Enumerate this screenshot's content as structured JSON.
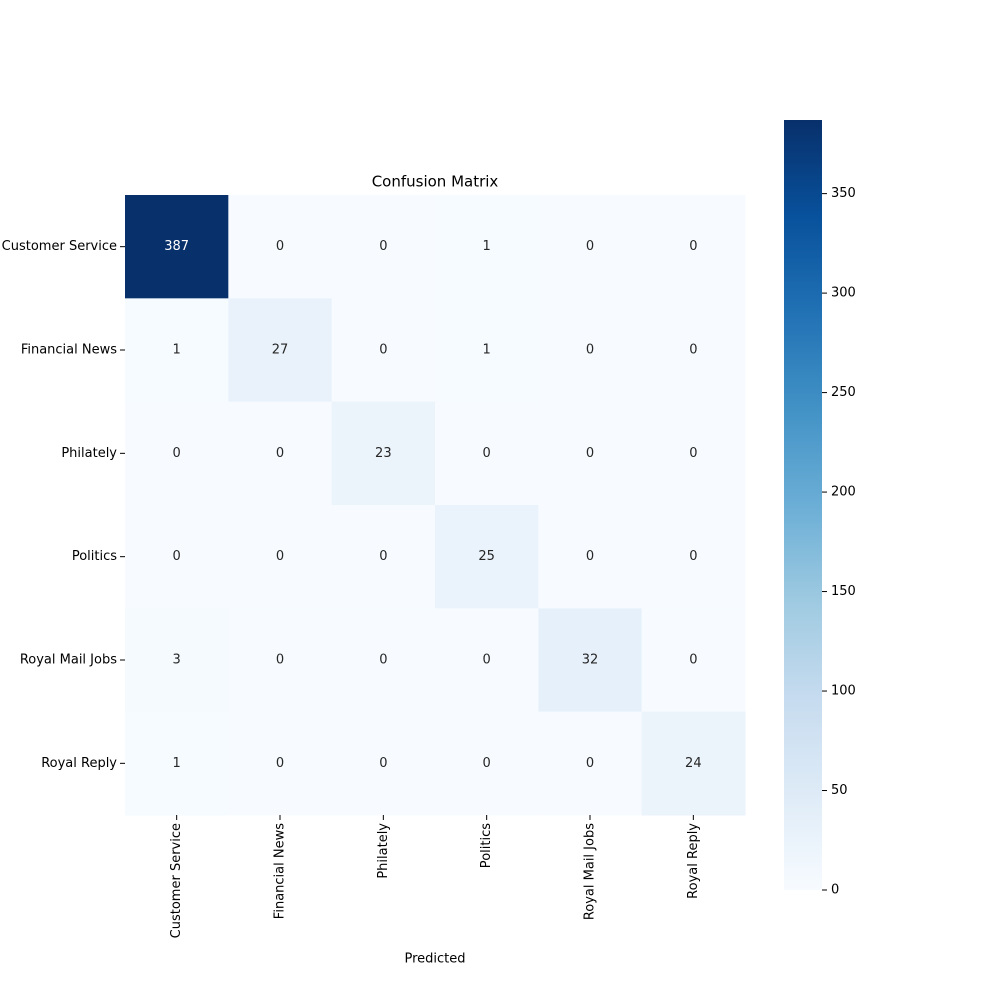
{
  "chart_data": {
    "type": "heatmap",
    "title": "Confusion Matrix",
    "xlabel": "Predicted",
    "x_categories": [
      "Customer Service",
      "Financial News",
      "Philately",
      "Politics",
      "Royal Mail Jobs",
      "Royal Reply"
    ],
    "y_categories": [
      "Customer Service",
      "Financial News",
      "Philately",
      "Politics",
      "Royal Mail Jobs",
      "Royal Reply"
    ],
    "values": [
      [
        387,
        0,
        0,
        1,
        0,
        0
      ],
      [
        1,
        27,
        0,
        1,
        0,
        0
      ],
      [
        0,
        0,
        23,
        0,
        0,
        0
      ],
      [
        0,
        0,
        0,
        25,
        0,
        0
      ],
      [
        3,
        0,
        0,
        0,
        32,
        0
      ],
      [
        1,
        0,
        0,
        0,
        0,
        24
      ]
    ],
    "colormap": [
      "#f7fbff",
      "#deebf7",
      "#c6dbef",
      "#9ecae1",
      "#6baed6",
      "#4292c6",
      "#2171b5",
      "#08519c",
      "#08306b"
    ],
    "clim": [
      0,
      387
    ],
    "cticks": [
      0,
      50,
      100,
      150,
      200,
      250,
      300,
      350
    ]
  }
}
